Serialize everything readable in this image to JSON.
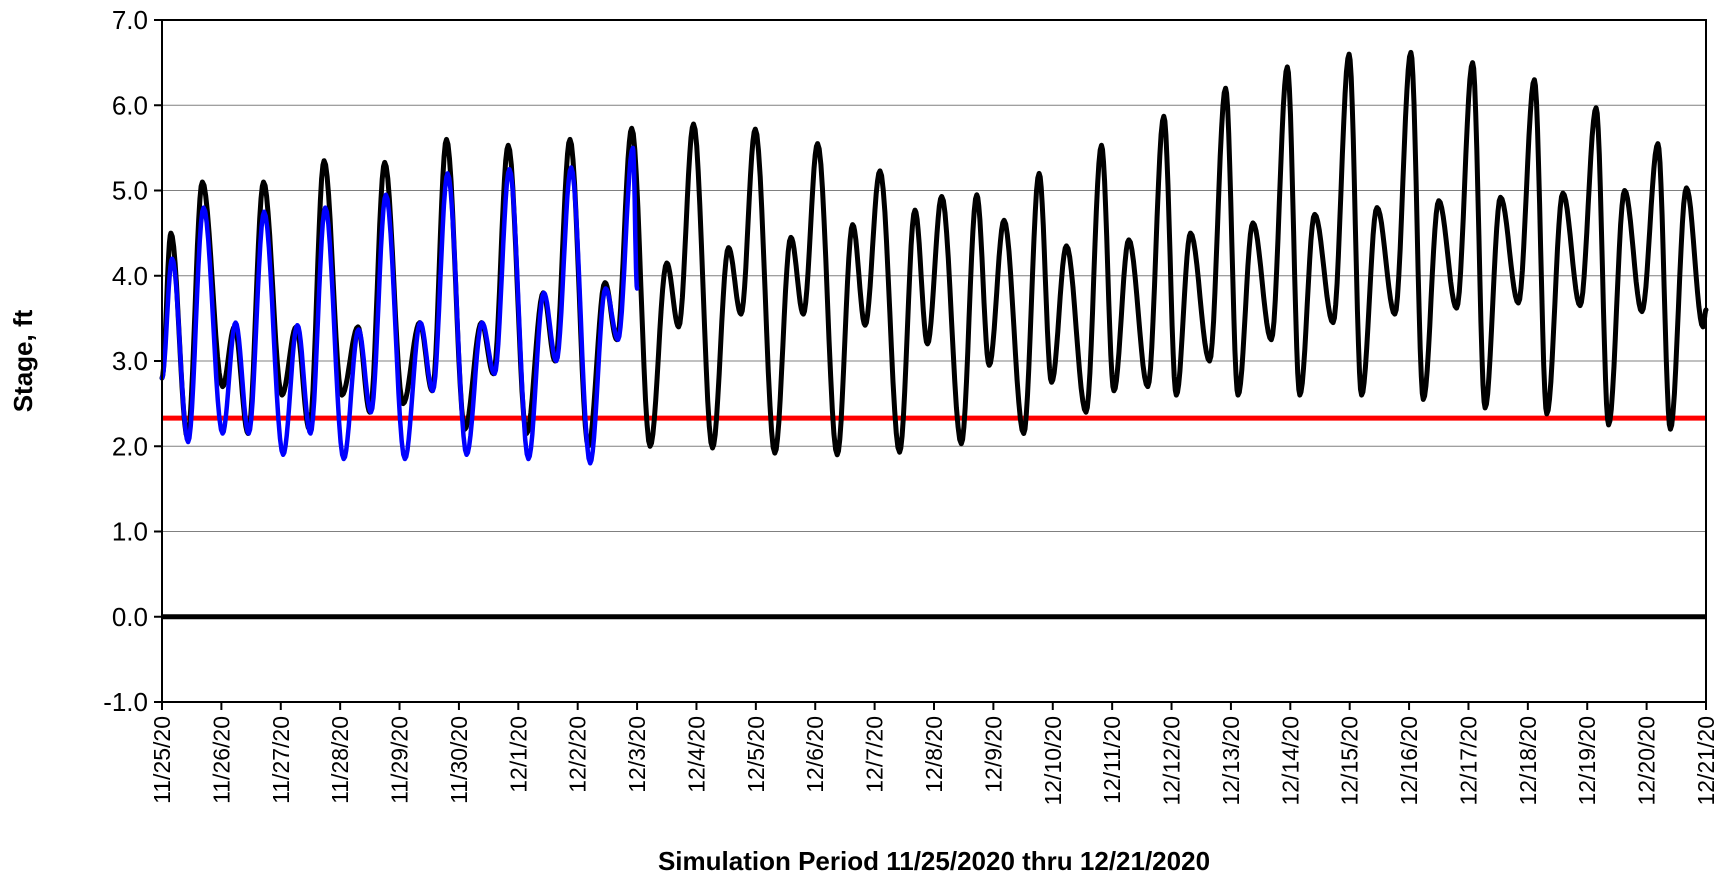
{
  "chart_data": {
    "type": "line",
    "title": "",
    "xlabel": "Simulation Period 11/25/2020 thru 12/21/2020",
    "ylabel": "Stage, ft",
    "ylim": [
      -1.0,
      7.0
    ],
    "y_ticks": [
      "-1.0",
      "0.0",
      "1.0",
      "2.0",
      "3.0",
      "4.0",
      "5.0",
      "6.0",
      "7.0"
    ],
    "x_tick_labels": [
      "11/25/20",
      "11/26/20",
      "11/27/20",
      "11/28/20",
      "11/29/20",
      "11/30/20",
      "12/1/20",
      "12/2/20",
      "12/3/20",
      "12/4/20",
      "12/5/20",
      "12/6/20",
      "12/7/20",
      "12/8/20",
      "12/9/20",
      "12/10/20",
      "12/11/20",
      "12/12/20",
      "12/13/20",
      "12/14/20",
      "12/15/20",
      "12/16/20",
      "12/17/20",
      "12/18/20",
      "12/19/20",
      "12/20/20",
      "12/21/20"
    ],
    "xlim_days": [
      0,
      26
    ],
    "grid": "horizontal",
    "series": [
      {
        "color": "#000000",
        "extremes": [
          {
            "x": 0.0,
            "y": 2.8
          },
          {
            "x": 0.15,
            "y": 4.5
          },
          {
            "x": 0.43,
            "y": 2.1
          },
          {
            "x": 0.68,
            "y": 5.1
          },
          {
            "x": 1.02,
            "y": 2.7
          },
          {
            "x": 1.22,
            "y": 3.4
          },
          {
            "x": 1.45,
            "y": 2.15
          },
          {
            "x": 1.71,
            "y": 5.1
          },
          {
            "x": 2.02,
            "y": 2.6
          },
          {
            "x": 2.26,
            "y": 3.4
          },
          {
            "x": 2.48,
            "y": 2.2
          },
          {
            "x": 2.73,
            "y": 5.35
          },
          {
            "x": 3.03,
            "y": 2.6
          },
          {
            "x": 3.3,
            "y": 3.4
          },
          {
            "x": 3.5,
            "y": 2.4
          },
          {
            "x": 3.75,
            "y": 5.33
          },
          {
            "x": 4.06,
            "y": 2.5
          },
          {
            "x": 4.34,
            "y": 3.45
          },
          {
            "x": 4.55,
            "y": 2.65
          },
          {
            "x": 4.79,
            "y": 5.6
          },
          {
            "x": 5.1,
            "y": 2.2
          },
          {
            "x": 5.38,
            "y": 3.45
          },
          {
            "x": 5.58,
            "y": 2.85
          },
          {
            "x": 5.83,
            "y": 5.53
          },
          {
            "x": 6.14,
            "y": 2.15
          },
          {
            "x": 6.42,
            "y": 3.8
          },
          {
            "x": 6.62,
            "y": 3.0
          },
          {
            "x": 6.87,
            "y": 5.6
          },
          {
            "x": 7.18,
            "y": 2.0
          },
          {
            "x": 7.46,
            "y": 3.92
          },
          {
            "x": 7.66,
            "y": 3.25
          },
          {
            "x": 7.91,
            "y": 5.73
          },
          {
            "x": 8.22,
            "y": 2.0
          },
          {
            "x": 8.5,
            "y": 4.15
          },
          {
            "x": 8.7,
            "y": 3.4
          },
          {
            "x": 8.95,
            "y": 5.78
          },
          {
            "x": 9.27,
            "y": 1.98
          },
          {
            "x": 9.54,
            "y": 4.33
          },
          {
            "x": 9.75,
            "y": 3.55
          },
          {
            "x": 9.99,
            "y": 5.72
          },
          {
            "x": 10.32,
            "y": 1.92
          },
          {
            "x": 10.59,
            "y": 4.45
          },
          {
            "x": 10.8,
            "y": 3.55
          },
          {
            "x": 11.04,
            "y": 5.55
          },
          {
            "x": 11.37,
            "y": 1.9
          },
          {
            "x": 11.63,
            "y": 4.6
          },
          {
            "x": 11.84,
            "y": 3.42
          },
          {
            "x": 12.09,
            "y": 5.23
          },
          {
            "x": 12.42,
            "y": 1.93
          },
          {
            "x": 12.68,
            "y": 4.77
          },
          {
            "x": 12.89,
            "y": 3.2
          },
          {
            "x": 13.13,
            "y": 4.93
          },
          {
            "x": 13.46,
            "y": 2.03
          },
          {
            "x": 13.72,
            "y": 4.95
          },
          {
            "x": 13.93,
            "y": 2.95
          },
          {
            "x": 14.18,
            "y": 4.65
          },
          {
            "x": 14.51,
            "y": 2.15
          },
          {
            "x": 14.77,
            "y": 5.2
          },
          {
            "x": 14.98,
            "y": 2.75
          },
          {
            "x": 15.23,
            "y": 4.35
          },
          {
            "x": 15.56,
            "y": 2.4
          },
          {
            "x": 15.82,
            "y": 5.53
          },
          {
            "x": 16.03,
            "y": 2.65
          },
          {
            "x": 16.28,
            "y": 4.42
          },
          {
            "x": 16.6,
            "y": 2.7
          },
          {
            "x": 16.87,
            "y": 5.87
          },
          {
            "x": 17.08,
            "y": 2.6
          },
          {
            "x": 17.32,
            "y": 4.5
          },
          {
            "x": 17.64,
            "y": 3.0
          },
          {
            "x": 17.91,
            "y": 6.2
          },
          {
            "x": 18.12,
            "y": 2.6
          },
          {
            "x": 18.37,
            "y": 4.62
          },
          {
            "x": 18.68,
            "y": 3.25
          },
          {
            "x": 18.95,
            "y": 6.45
          },
          {
            "x": 19.16,
            "y": 2.6
          },
          {
            "x": 19.41,
            "y": 4.72
          },
          {
            "x": 19.72,
            "y": 3.45
          },
          {
            "x": 19.99,
            "y": 6.6
          },
          {
            "x": 20.2,
            "y": 2.6
          },
          {
            "x": 20.46,
            "y": 4.8
          },
          {
            "x": 20.76,
            "y": 3.55
          },
          {
            "x": 21.03,
            "y": 6.62
          },
          {
            "x": 21.24,
            "y": 2.55
          },
          {
            "x": 21.5,
            "y": 4.88
          },
          {
            "x": 21.8,
            "y": 3.62
          },
          {
            "x": 22.07,
            "y": 6.5
          },
          {
            "x": 22.28,
            "y": 2.45
          },
          {
            "x": 22.54,
            "y": 4.92
          },
          {
            "x": 22.84,
            "y": 3.68
          },
          {
            "x": 23.11,
            "y": 6.3
          },
          {
            "x": 23.32,
            "y": 2.38
          },
          {
            "x": 23.59,
            "y": 4.97
          },
          {
            "x": 23.88,
            "y": 3.65
          },
          {
            "x": 24.15,
            "y": 5.97
          },
          {
            "x": 24.36,
            "y": 2.25
          },
          {
            "x": 24.63,
            "y": 5.0
          },
          {
            "x": 24.92,
            "y": 3.58
          },
          {
            "x": 25.19,
            "y": 5.55
          },
          {
            "x": 25.4,
            "y": 2.2
          },
          {
            "x": 25.67,
            "y": 5.03
          },
          {
            "x": 25.95,
            "y": 3.4
          },
          {
            "x": 26.0,
            "y": 3.6
          }
        ]
      },
      {
        "color": "#0000ff",
        "extremes": [
          {
            "x": 0.0,
            "y": 2.8
          },
          {
            "x": 0.17,
            "y": 4.2
          },
          {
            "x": 0.44,
            "y": 2.05
          },
          {
            "x": 0.7,
            "y": 4.8
          },
          {
            "x": 1.02,
            "y": 2.15
          },
          {
            "x": 1.24,
            "y": 3.45
          },
          {
            "x": 1.46,
            "y": 2.15
          },
          {
            "x": 1.72,
            "y": 4.75
          },
          {
            "x": 2.04,
            "y": 1.9
          },
          {
            "x": 2.28,
            "y": 3.42
          },
          {
            "x": 2.5,
            "y": 2.15
          },
          {
            "x": 2.75,
            "y": 4.8
          },
          {
            "x": 3.06,
            "y": 1.85
          },
          {
            "x": 3.31,
            "y": 3.37
          },
          {
            "x": 3.52,
            "y": 2.4
          },
          {
            "x": 3.77,
            "y": 4.95
          },
          {
            "x": 4.09,
            "y": 1.85
          },
          {
            "x": 4.35,
            "y": 3.45
          },
          {
            "x": 4.56,
            "y": 2.65
          },
          {
            "x": 4.81,
            "y": 5.2
          },
          {
            "x": 5.13,
            "y": 1.9
          },
          {
            "x": 5.39,
            "y": 3.45
          },
          {
            "x": 5.6,
            "y": 2.85
          },
          {
            "x": 5.85,
            "y": 5.25
          },
          {
            "x": 6.17,
            "y": 1.85
          },
          {
            "x": 6.43,
            "y": 3.8
          },
          {
            "x": 6.64,
            "y": 3.0
          },
          {
            "x": 6.89,
            "y": 5.27
          },
          {
            "x": 7.21,
            "y": 1.8
          },
          {
            "x": 7.47,
            "y": 3.85
          },
          {
            "x": 7.68,
            "y": 3.25
          },
          {
            "x": 7.93,
            "y": 5.5
          },
          {
            "x": 8.0,
            "y": 3.85
          }
        ]
      }
    ],
    "reference_lines": [
      {
        "y": 2.33,
        "color": "#ff0000"
      },
      {
        "y": 0.0,
        "color": "#000000"
      }
    ]
  }
}
